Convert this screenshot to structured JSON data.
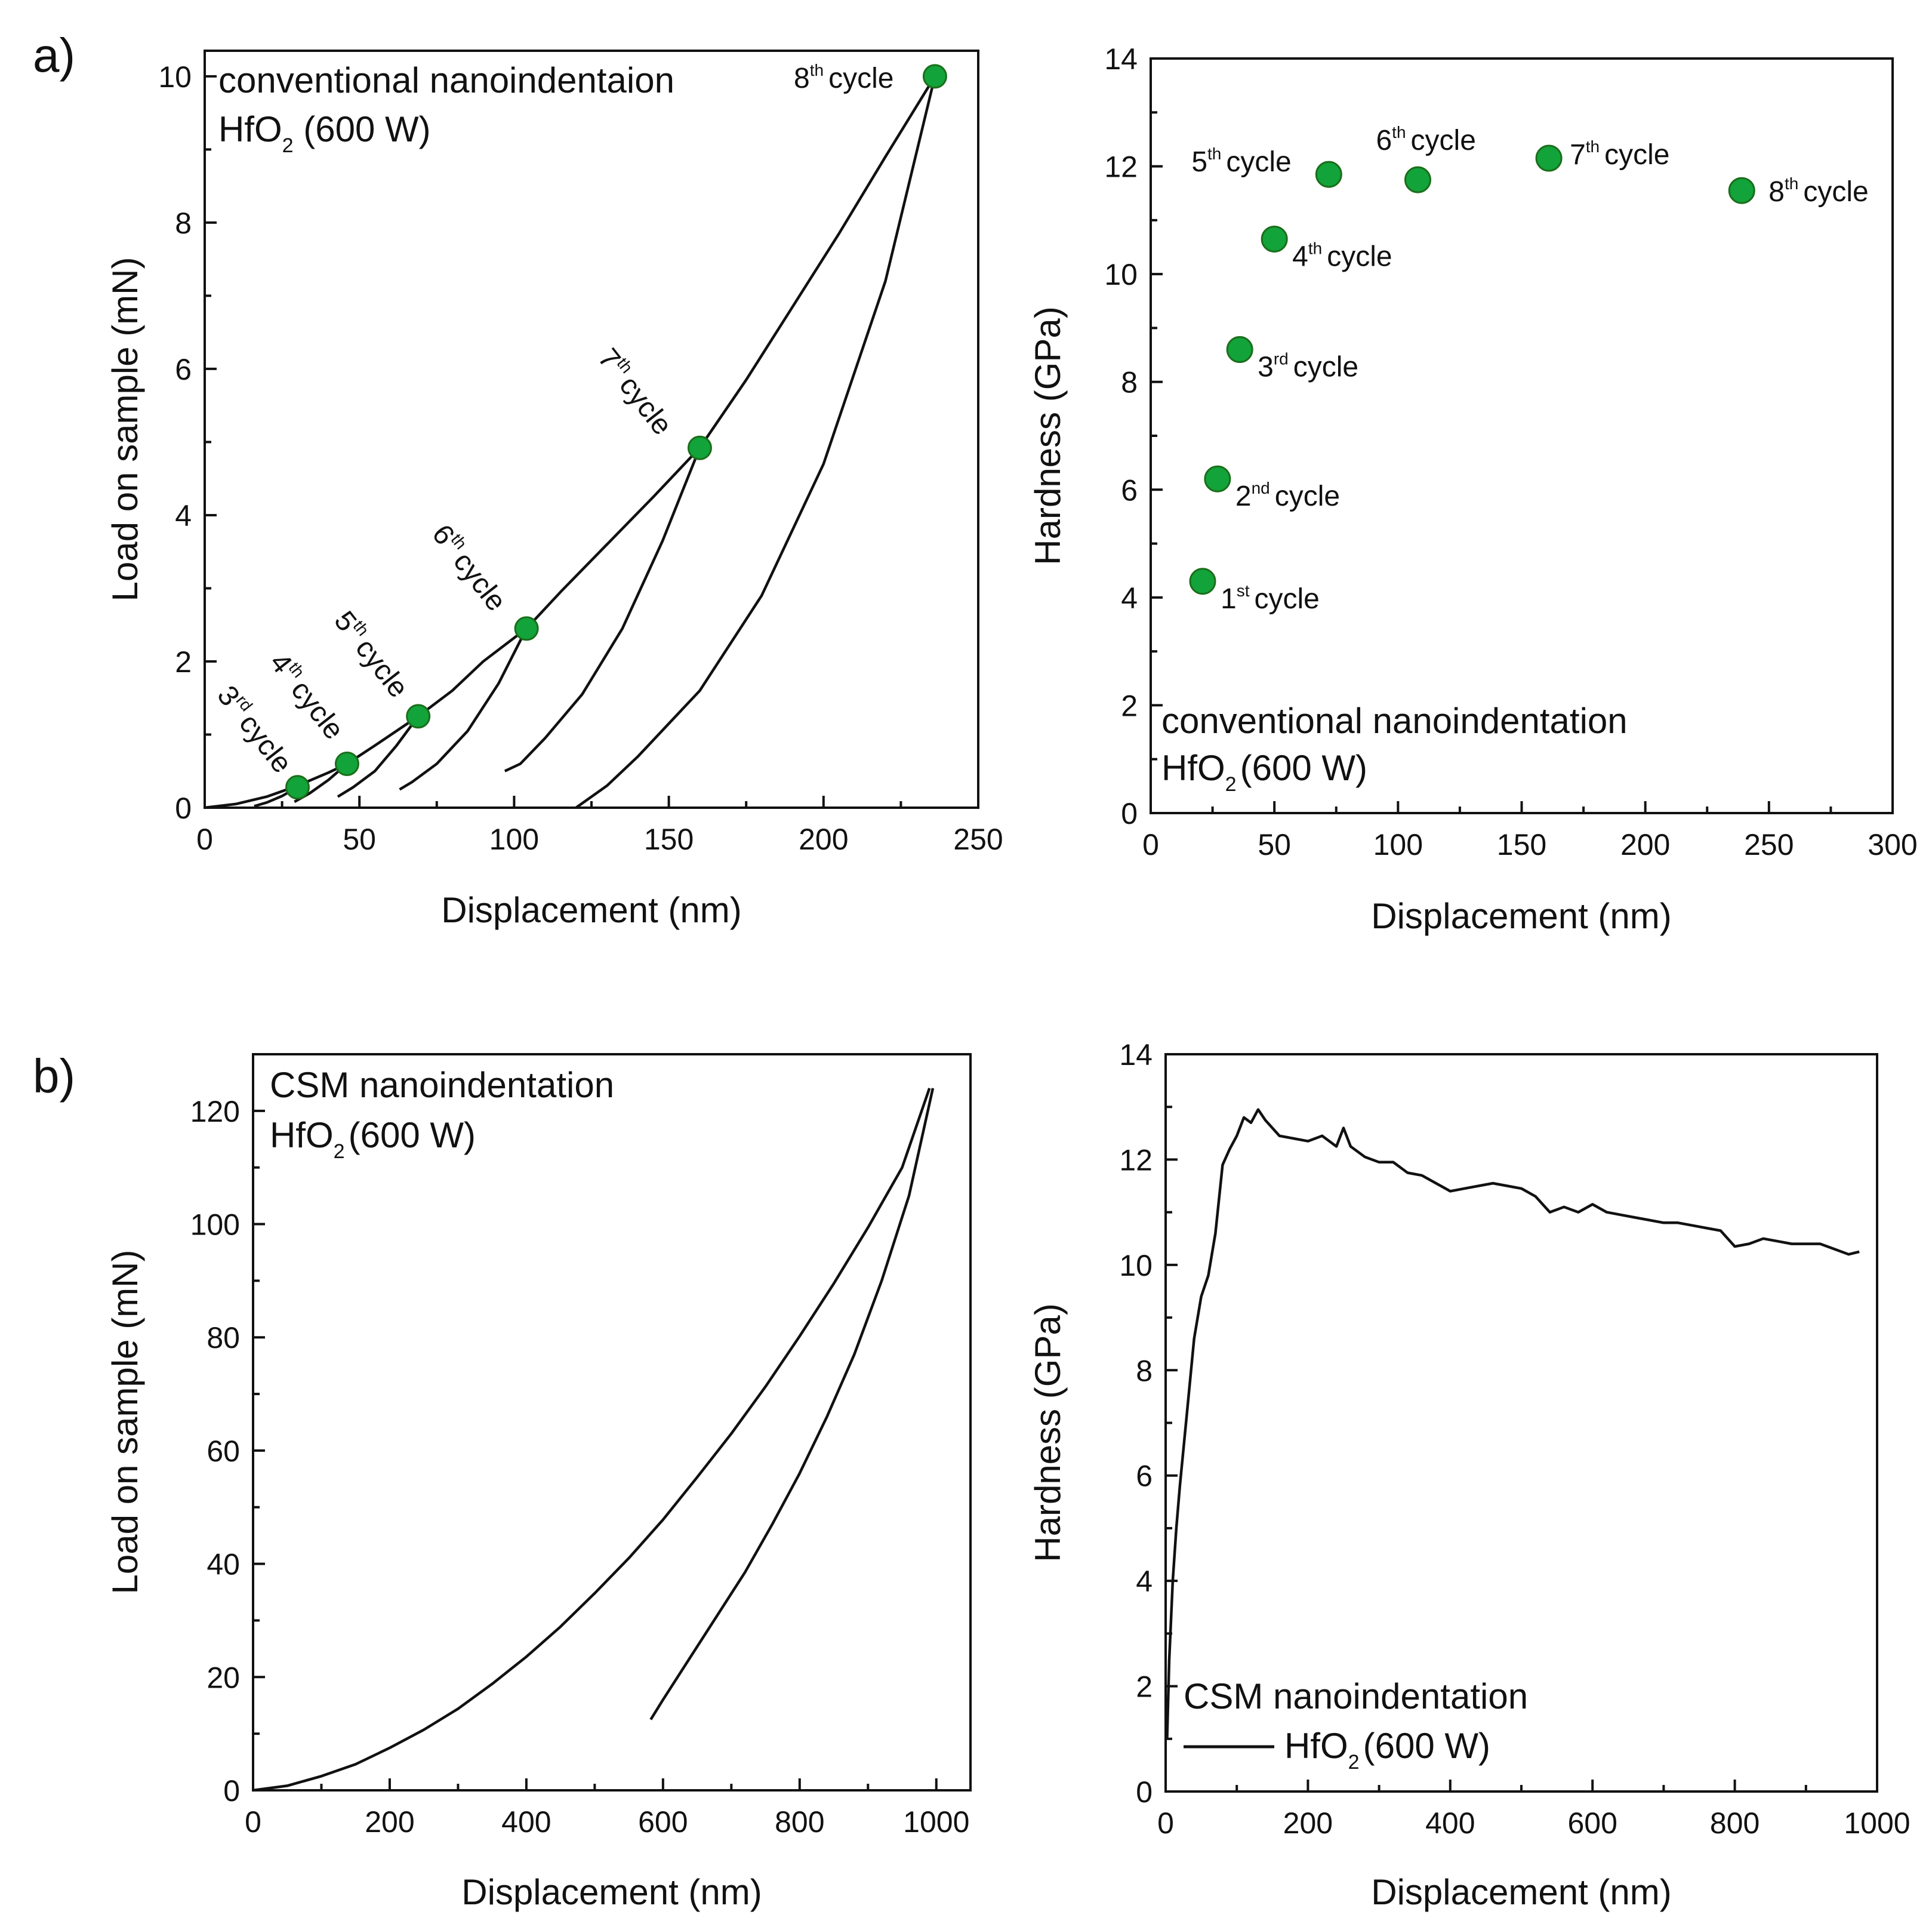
{
  "colors": {
    "point": "#12a33a",
    "line": "#111111"
  },
  "panel_labels": [
    "a)",
    "b)"
  ],
  "chart_data": [
    {
      "id": "a_left",
      "type": "line",
      "xlabel": "Displacement (nm)",
      "ylabel": "Load on sample (mN)",
      "xlim": [
        0,
        250
      ],
      "ylim": [
        0,
        10
      ],
      "xticks": [
        "0",
        "50",
        "100",
        "150",
        "200",
        "250"
      ],
      "yticks": [
        "0",
        "2",
        "4",
        "6",
        "8",
        "10"
      ],
      "annotation": {
        "line1": "conventional nanoindentaion",
        "line2_main": "HfO",
        "line2_sub": "2",
        "line2_rest": " (600 W)"
      },
      "loading_curve": {
        "x": [
          0,
          10,
          20,
          30,
          40,
          46,
          55,
          69,
          80,
          90,
          104,
          115,
          130,
          145,
          160,
          175,
          190,
          205,
          220,
          236
        ],
        "y": [
          0,
          0.05,
          0.15,
          0.3,
          0.48,
          0.6,
          0.85,
          1.25,
          1.6,
          2.0,
          2.45,
          2.95,
          3.6,
          4.25,
          4.92,
          5.85,
          6.85,
          7.85,
          8.9,
          10.0
        ]
      },
      "unloading_curves": [
        {
          "x": [
            236,
            220,
            200,
            180,
            160,
            140,
            130,
            120
          ],
          "y": [
            10.0,
            7.2,
            4.7,
            2.9,
            1.6,
            0.7,
            0.3,
            0.0
          ]
        },
        {
          "x": [
            160,
            148,
            135,
            122,
            110,
            102,
            97
          ],
          "y": [
            4.92,
            3.65,
            2.45,
            1.55,
            0.95,
            0.6,
            0.5
          ]
        },
        {
          "x": [
            104,
            95,
            85,
            75,
            67,
            63
          ],
          "y": [
            2.45,
            1.7,
            1.05,
            0.6,
            0.35,
            0.25
          ]
        },
        {
          "x": [
            69,
            62,
            55,
            48,
            43
          ],
          "y": [
            1.25,
            0.85,
            0.5,
            0.28,
            0.15
          ]
        },
        {
          "x": [
            46,
            40,
            34,
            29
          ],
          "y": [
            0.6,
            0.38,
            0.2,
            0.08
          ]
        },
        {
          "x": [
            30,
            25,
            20,
            16
          ],
          "y": [
            0.28,
            0.16,
            0.07,
            0.02
          ]
        }
      ],
      "cycle_points": [
        {
          "x": 30,
          "y": 0.28,
          "label_num": "3",
          "label_sup": "rd",
          "label_word": "cycle"
        },
        {
          "x": 46,
          "y": 0.6,
          "label_num": "4",
          "label_sup": "th",
          "label_word": "cycle"
        },
        {
          "x": 69,
          "y": 1.25,
          "label_num": "5",
          "label_sup": "th",
          "label_word": "cycle"
        },
        {
          "x": 104,
          "y": 2.45,
          "label_num": "6",
          "label_sup": "th",
          "label_word": "cycle"
        },
        {
          "x": 160,
          "y": 4.92,
          "label_num": "7",
          "label_sup": "th",
          "label_word": "cycle"
        },
        {
          "x": 236,
          "y": 10.0,
          "label_num": "8",
          "label_sup": "th",
          "label_word": "cycle"
        }
      ]
    },
    {
      "id": "a_right",
      "type": "scatter",
      "xlabel": "Displacement (nm)",
      "ylabel": "Hardness (GPa)",
      "xlim": [
        0,
        300
      ],
      "ylim": [
        0,
        14
      ],
      "xticks": [
        "0",
        "50",
        "100",
        "150",
        "200",
        "250",
        "300"
      ],
      "yticks": [
        "0",
        "2",
        "4",
        "6",
        "8",
        "10",
        "12",
        "14"
      ],
      "annotation": {
        "line1": "conventional nanoindentation",
        "line2_main": "HfO",
        "line2_sub": "2",
        "line2_rest": "(600 W)"
      },
      "points": [
        {
          "x": 21,
          "y": 4.3,
          "label_num": "1",
          "label_sup": "st",
          "label_word": "cycle"
        },
        {
          "x": 27,
          "y": 6.2,
          "label_num": "2",
          "label_sup": "nd",
          "label_word": "cycle"
        },
        {
          "x": 36,
          "y": 8.6,
          "label_num": "3",
          "label_sup": "rd",
          "label_word": "cycle"
        },
        {
          "x": 50,
          "y": 10.65,
          "label_num": "4",
          "label_sup": "th",
          "label_word": "cycle"
        },
        {
          "x": 72,
          "y": 11.85,
          "label_num": "5",
          "label_sup": "th",
          "label_word": "cycle"
        },
        {
          "x": 108,
          "y": 11.75,
          "label_num": "6",
          "label_sup": "th",
          "label_word": "cycle"
        },
        {
          "x": 161,
          "y": 12.15,
          "label_num": "7",
          "label_sup": "th",
          "label_word": "cycle"
        },
        {
          "x": 239,
          "y": 11.55,
          "label_num": "8",
          "label_sup": "th",
          "label_word": "cycle"
        }
      ]
    },
    {
      "id": "b_left",
      "type": "line",
      "xlabel": "Displacement (nm)",
      "ylabel": "Load on sample (mN)",
      "xlim": [
        0,
        1050
      ],
      "ylim": [
        0,
        130
      ],
      "xticks": [
        "0",
        "200",
        "400",
        "600",
        "800",
        "1000"
      ],
      "yticks": [
        "0",
        "20",
        "40",
        "60",
        "80",
        "100",
        "120"
      ],
      "annotation": {
        "line1": "CSM nanoindentation",
        "line2_main": "HfO",
        "line2_sub": "2",
        "line2_rest": "(600 W)"
      },
      "loading_curve": {
        "x": [
          0,
          50,
          100,
          150,
          200,
          250,
          300,
          350,
          400,
          450,
          500,
          550,
          600,
          650,
          700,
          750,
          800,
          850,
          900,
          950,
          990
        ],
        "y": [
          0,
          0.8,
          2.5,
          4.6,
          7.5,
          10.7,
          14.4,
          18.8,
          23.6,
          28.9,
          34.8,
          41.0,
          47.8,
          55.3,
          63.0,
          71.3,
          80.2,
          89.5,
          99.4,
          110.0,
          124.0
        ]
      },
      "unloading_curve": {
        "x": [
          995,
          960,
          920,
          880,
          840,
          800,
          760,
          720,
          680,
          640,
          600,
          582
        ],
        "y": [
          124.0,
          105.0,
          90.0,
          77.0,
          66.0,
          56.0,
          47.0,
          38.5,
          31.0,
          23.5,
          16.0,
          12.5
        ]
      }
    },
    {
      "id": "b_right",
      "type": "line",
      "xlabel": "Displacement (nm)",
      "ylabel": "Hardness (GPa)",
      "xlim": [
        0,
        1000
      ],
      "ylim": [
        0,
        14
      ],
      "xticks": [
        "0",
        "200",
        "400",
        "600",
        "800",
        "1000"
      ],
      "yticks": [
        "0",
        "2",
        "4",
        "6",
        "8",
        "10",
        "12",
        "14"
      ],
      "annotation": {
        "line1": "CSM nanoindentation",
        "line2_main": "HfO",
        "line2_sub": "2",
        "line2_rest": "(600 W)"
      },
      "series": {
        "name": "HfO2 (600 W)",
        "x": [
          2,
          5,
          10,
          15,
          20,
          30,
          40,
          50,
          60,
          70,
          80,
          90,
          100,
          110,
          120,
          130,
          140,
          150,
          160,
          180,
          200,
          220,
          240,
          250,
          260,
          280,
          300,
          320,
          340,
          360,
          380,
          400,
          420,
          440,
          460,
          480,
          500,
          520,
          540,
          560,
          580,
          600,
          620,
          640,
          660,
          680,
          700,
          720,
          740,
          760,
          780,
          800,
          820,
          840,
          860,
          880,
          900,
          920,
          940,
          960,
          975
        ],
        "y": [
          1.0,
          2.5,
          4.0,
          5.0,
          5.8,
          7.2,
          8.6,
          9.4,
          9.8,
          10.6,
          11.9,
          12.2,
          12.45,
          12.8,
          12.7,
          12.95,
          12.75,
          12.6,
          12.45,
          12.4,
          12.35,
          12.45,
          12.25,
          12.6,
          12.25,
          12.05,
          11.95,
          11.95,
          11.75,
          11.7,
          11.55,
          11.4,
          11.45,
          11.5,
          11.55,
          11.5,
          11.45,
          11.3,
          11.0,
          11.1,
          11.0,
          11.15,
          11.0,
          10.95,
          10.9,
          10.85,
          10.8,
          10.8,
          10.75,
          10.7,
          10.65,
          10.35,
          10.4,
          10.5,
          10.45,
          10.4,
          10.4,
          10.4,
          10.3,
          10.2,
          10.25
        ]
      }
    }
  ]
}
